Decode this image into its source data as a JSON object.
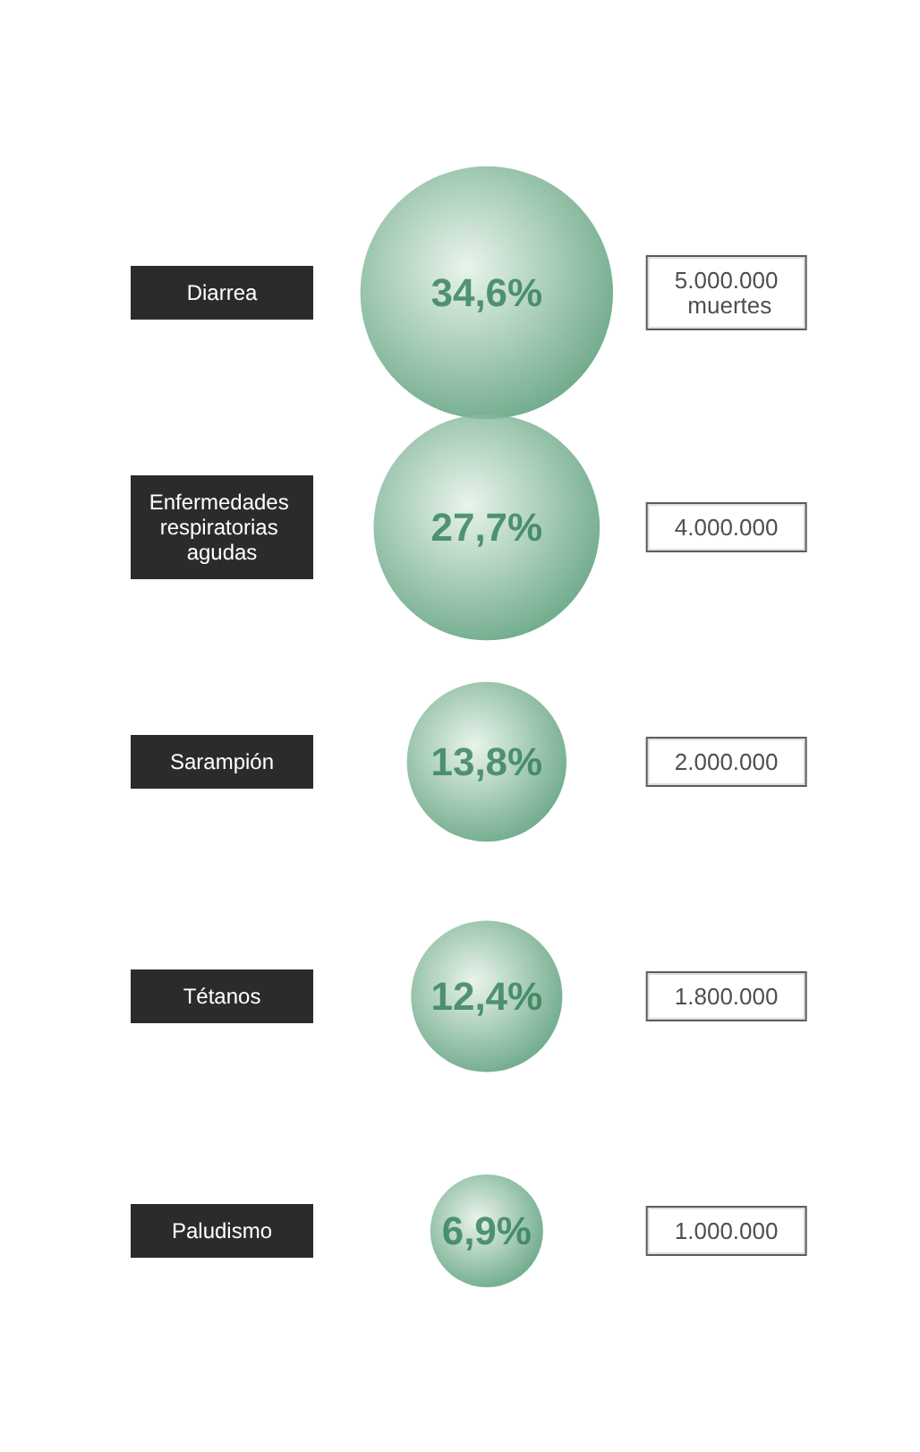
{
  "chart_data": {
    "type": "other",
    "categories": [
      "Diarrea",
      "Enfermedades respiratorias agudas",
      "Sarampión",
      "Tétanos",
      "Paludismo"
    ],
    "series": [
      {
        "type": "bubble",
        "color": "#3d8d63",
        "values": [
          34.6,
          27.7,
          13.8,
          12.4,
          6.9
        ],
        "value_labels": [
          "34,6%",
          "27,7%",
          "13,8%",
          "12,4%",
          "6,9%"
        ]
      },
      {
        "type": "other",
        "values": [
          5000000,
          4000000,
          2000000,
          1800000,
          1000000
        ],
        "value_labels": [
          "5.000.000 muertes",
          "4.000.000",
          "2.000.000",
          "1.800.000",
          "1.000.000"
        ]
      }
    ]
  }
}
